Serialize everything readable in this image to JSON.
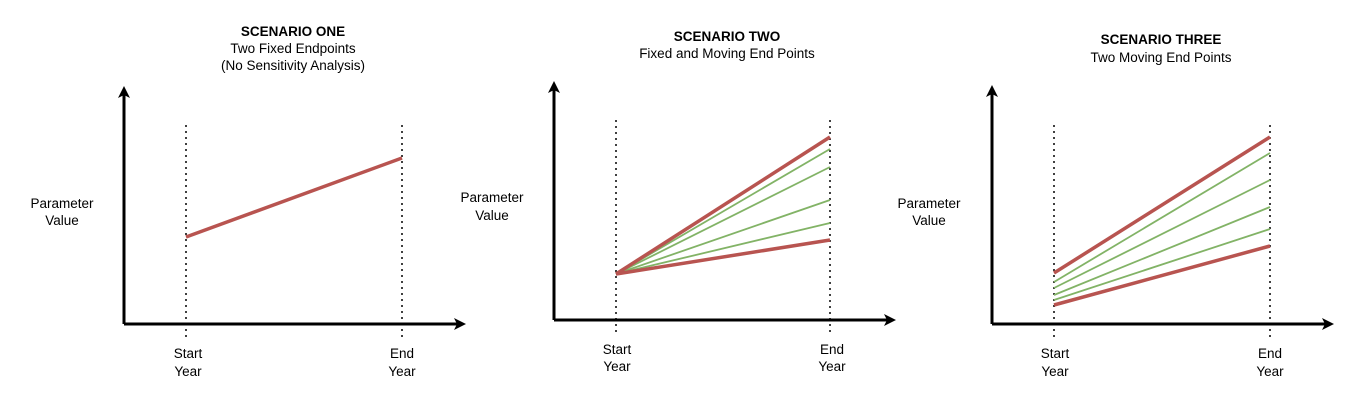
{
  "colors": {
    "red": "#b85450",
    "green": "#82b366",
    "axis": "#000000"
  },
  "panels": [
    {
      "title": "SCENARIO ONE",
      "subtitle_1": "Two Fixed Endpoints",
      "subtitle_2": "(No Sensitivity Analysis)",
      "ylabel_1": "Parameter",
      "ylabel_2": "Value",
      "start_1": "Start",
      "start_2": "Year",
      "end_1": "End",
      "end_2": "Year"
    },
    {
      "title": "SCENARIO TWO",
      "subtitle_1": "Fixed and Moving End Points",
      "ylabel_1": "Parameter",
      "ylabel_2": "Value",
      "start_1": "Start",
      "start_2": "Year",
      "end_1": "End",
      "end_2": "Year"
    },
    {
      "title": "SCENARIO THREE",
      "subtitle_1": "Two Moving End Points",
      "ylabel_1": "Parameter",
      "ylabel_2": "Value",
      "start_1": "Start",
      "start_2": "Year",
      "end_1": "End",
      "end_2": "Year"
    }
  ]
}
